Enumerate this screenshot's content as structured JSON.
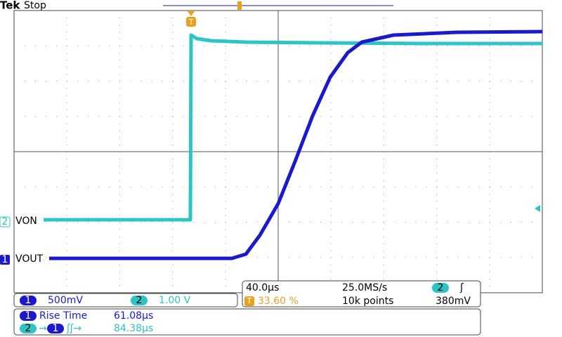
{
  "header": {
    "brand": "Tek",
    "status": "Stop"
  },
  "markers": [
    {
      "channel": "2",
      "label": "VON"
    },
    {
      "channel": "1",
      "label": "VOUT"
    }
  ],
  "status_bar": {
    "channel_1": {
      "badge": "1",
      "scale": "500mV"
    },
    "channel_2": {
      "badge": "2",
      "scale": "1.00 V"
    },
    "horizontal": {
      "time_div": "40.0µs",
      "sample_rate": "25.0MS/s",
      "trigger_badge": "T",
      "trigger_position": "33.60 %",
      "record_length": "10k points"
    },
    "trigger": {
      "source": "2",
      "slope": "ʃ",
      "level": "380mV"
    }
  },
  "measurements": [
    {
      "source": "1",
      "name": "Rise Time",
      "value": "61.08µs"
    },
    {
      "source": "2",
      "arrow": "→",
      "target": "1",
      "name": "ʃʃ→",
      "value": "84.38µs"
    }
  ]
}
